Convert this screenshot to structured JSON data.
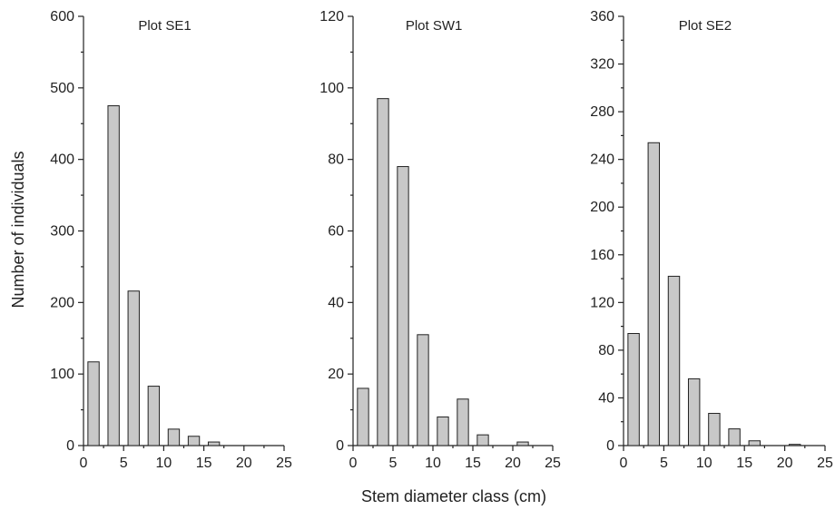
{
  "chart_data": [
    {
      "type": "bar",
      "title": "Plot SE1",
      "ylabel": "Number of individuals",
      "xlim": [
        0,
        25
      ],
      "ylim": [
        0,
        600
      ],
      "xticks": [
        0,
        5,
        10,
        15,
        20,
        25
      ],
      "yticks": [
        0,
        100,
        200,
        300,
        400,
        500,
        600
      ],
      "x": [
        1.25,
        3.75,
        6.25,
        8.75,
        11.25,
        13.75,
        16.25,
        18.75,
        21.25
      ],
      "values": [
        117,
        475,
        216,
        83,
        23,
        13,
        5,
        0,
        0
      ],
      "bar_width": 1.4,
      "bar_color": "#c8c8c8"
    },
    {
      "type": "bar",
      "title": "Plot SW1",
      "xlim": [
        0,
        25
      ],
      "ylim": [
        0,
        120
      ],
      "xticks": [
        0,
        5,
        10,
        15,
        20,
        25
      ],
      "yticks": [
        0,
        20,
        40,
        60,
        80,
        100,
        120
      ],
      "x": [
        1.25,
        3.75,
        6.25,
        8.75,
        11.25,
        13.75,
        16.25,
        18.75,
        21.25
      ],
      "values": [
        16,
        97,
        78,
        31,
        8,
        13,
        3,
        0,
        1
      ],
      "bar_width": 1.4,
      "bar_color": "#c8c8c8"
    },
    {
      "type": "bar",
      "title": "Plot SE2",
      "xlim": [
        0,
        25
      ],
      "ylim": [
        0,
        360
      ],
      "xticks": [
        0,
        5,
        10,
        15,
        20,
        25
      ],
      "yticks": [
        0,
        40,
        80,
        120,
        160,
        200,
        240,
        280,
        320,
        360
      ],
      "x": [
        1.25,
        3.75,
        6.25,
        8.75,
        11.25,
        13.75,
        16.25,
        18.75,
        21.25
      ],
      "values": [
        94,
        254,
        142,
        56,
        27,
        14,
        4,
        0,
        1
      ],
      "bar_width": 1.4,
      "bar_color": "#c8c8c8"
    }
  ],
  "figure": {
    "shared_xlabel": "Stem diameter class (cm)"
  }
}
